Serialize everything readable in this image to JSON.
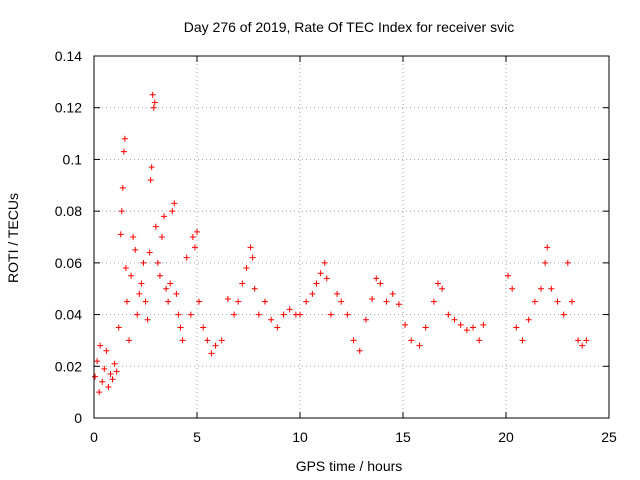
{
  "chart_data": {
    "type": "scatter",
    "title": "Day 276 of 2019, Rate Of TEC Index for receiver svic",
    "xlabel": "GPS time / hours",
    "ylabel": "ROTI / TECUs",
    "xlim": [
      0,
      25
    ],
    "ylim": [
      0,
      0.14
    ],
    "xticks": [
      0,
      5,
      10,
      15,
      20,
      25
    ],
    "xtick_labels": [
      "0",
      "5",
      "10",
      "15",
      "20",
      "25"
    ],
    "yticks": [
      0,
      0.02,
      0.04,
      0.06,
      0.08,
      0.1,
      0.12,
      0.14
    ],
    "ytick_labels": [
      "0",
      "0.02",
      "0.04",
      "0.06",
      "0.08",
      "0.1",
      "0.12",
      "0.14"
    ],
    "grid": true,
    "marker": "+",
    "color": "#ff0000",
    "series": [
      {
        "name": "ROTI",
        "points": [
          [
            0.05,
            0.016
          ],
          [
            0.15,
            0.022
          ],
          [
            0.25,
            0.01
          ],
          [
            0.3,
            0.028
          ],
          [
            0.4,
            0.014
          ],
          [
            0.5,
            0.019
          ],
          [
            0.6,
            0.026
          ],
          [
            0.7,
            0.012
          ],
          [
            0.8,
            0.017
          ],
          [
            0.9,
            0.015
          ],
          [
            1.0,
            0.021
          ],
          [
            1.1,
            0.018
          ],
          [
            1.2,
            0.035
          ],
          [
            1.3,
            0.071
          ],
          [
            1.35,
            0.08
          ],
          [
            1.4,
            0.089
          ],
          [
            1.45,
            0.103
          ],
          [
            1.5,
            0.108
          ],
          [
            1.55,
            0.058
          ],
          [
            1.6,
            0.045
          ],
          [
            1.7,
            0.03
          ],
          [
            1.8,
            0.055
          ],
          [
            1.9,
            0.07
          ],
          [
            2.0,
            0.065
          ],
          [
            2.1,
            0.04
          ],
          [
            2.2,
            0.048
          ],
          [
            2.3,
            0.052
          ],
          [
            2.4,
            0.06
          ],
          [
            2.5,
            0.045
          ],
          [
            2.6,
            0.038
          ],
          [
            2.7,
            0.064
          ],
          [
            2.75,
            0.092
          ],
          [
            2.8,
            0.097
          ],
          [
            2.85,
            0.125
          ],
          [
            2.9,
            0.12
          ],
          [
            2.95,
            0.122
          ],
          [
            3.0,
            0.074
          ],
          [
            3.1,
            0.06
          ],
          [
            3.2,
            0.055
          ],
          [
            3.3,
            0.07
          ],
          [
            3.4,
            0.078
          ],
          [
            3.5,
            0.05
          ],
          [
            3.6,
            0.045
          ],
          [
            3.7,
            0.052
          ],
          [
            3.8,
            0.08
          ],
          [
            3.9,
            0.083
          ],
          [
            4.0,
            0.048
          ],
          [
            4.1,
            0.04
          ],
          [
            4.2,
            0.035
          ],
          [
            4.3,
            0.03
          ],
          [
            4.5,
            0.062
          ],
          [
            4.7,
            0.04
          ],
          [
            4.8,
            0.07
          ],
          [
            4.9,
            0.066
          ],
          [
            5.0,
            0.072
          ],
          [
            5.1,
            0.045
          ],
          [
            5.3,
            0.035
          ],
          [
            5.5,
            0.03
          ],
          [
            5.7,
            0.025
          ],
          [
            5.9,
            0.028
          ],
          [
            6.2,
            0.03
          ],
          [
            6.5,
            0.046
          ],
          [
            6.8,
            0.04
          ],
          [
            7.0,
            0.045
          ],
          [
            7.2,
            0.052
          ],
          [
            7.4,
            0.058
          ],
          [
            7.6,
            0.066
          ],
          [
            7.7,
            0.062
          ],
          [
            7.8,
            0.05
          ],
          [
            8.0,
            0.04
          ],
          [
            8.3,
            0.045
          ],
          [
            8.6,
            0.038
          ],
          [
            8.9,
            0.035
          ],
          [
            9.2,
            0.04
          ],
          [
            9.5,
            0.042
          ],
          [
            9.8,
            0.04
          ],
          [
            10.0,
            0.04
          ],
          [
            10.3,
            0.045
          ],
          [
            10.6,
            0.048
          ],
          [
            10.8,
            0.052
          ],
          [
            11.0,
            0.056
          ],
          [
            11.2,
            0.06
          ],
          [
            11.3,
            0.054
          ],
          [
            11.5,
            0.04
          ],
          [
            11.8,
            0.048
          ],
          [
            12.0,
            0.045
          ],
          [
            12.3,
            0.04
          ],
          [
            12.6,
            0.03
          ],
          [
            12.9,
            0.026
          ],
          [
            13.2,
            0.038
          ],
          [
            13.5,
            0.046
          ],
          [
            13.7,
            0.054
          ],
          [
            13.9,
            0.052
          ],
          [
            14.2,
            0.045
          ],
          [
            14.5,
            0.048
          ],
          [
            14.8,
            0.044
          ],
          [
            15.1,
            0.036
          ],
          [
            15.4,
            0.03
          ],
          [
            15.8,
            0.028
          ],
          [
            16.1,
            0.035
          ],
          [
            16.5,
            0.045
          ],
          [
            16.7,
            0.052
          ],
          [
            16.9,
            0.05
          ],
          [
            17.2,
            0.04
          ],
          [
            17.5,
            0.038
          ],
          [
            17.8,
            0.036
          ],
          [
            18.1,
            0.034
          ],
          [
            18.4,
            0.035
          ],
          [
            18.7,
            0.03
          ],
          [
            18.9,
            0.036
          ],
          [
            20.1,
            0.055
          ],
          [
            20.3,
            0.05
          ],
          [
            20.5,
            0.035
          ],
          [
            20.8,
            0.03
          ],
          [
            21.1,
            0.038
          ],
          [
            21.4,
            0.045
          ],
          [
            21.7,
            0.05
          ],
          [
            21.9,
            0.06
          ],
          [
            22.0,
            0.066
          ],
          [
            22.2,
            0.05
          ],
          [
            22.5,
            0.045
          ],
          [
            22.8,
            0.04
          ],
          [
            23.0,
            0.06
          ],
          [
            23.2,
            0.045
          ],
          [
            23.5,
            0.03
          ],
          [
            23.7,
            0.028
          ],
          [
            23.9,
            0.03
          ]
        ]
      }
    ]
  }
}
